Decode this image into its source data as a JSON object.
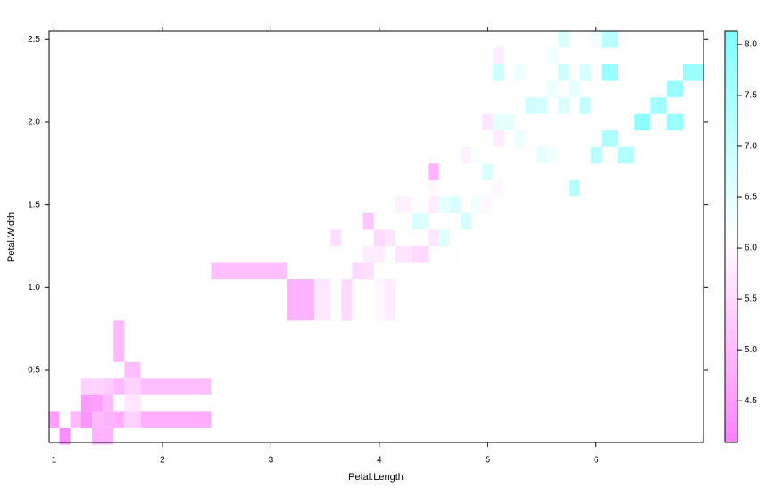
{
  "chart_data": {
    "type": "levelplot",
    "x_label": "Petal.Length",
    "y_label": "Petal.Width",
    "x": [
      1.0,
      1.1,
      1.2,
      1.3,
      1.3,
      1.3,
      1.4,
      1.4,
      1.4,
      1.4,
      1.5,
      1.5,
      1.5,
      1.5,
      1.6,
      1.6,
      1.6,
      1.7,
      1.7,
      1.7,
      1.7,
      1.9,
      1.9,
      3.0,
      3.3,
      3.5,
      3.6,
      3.7,
      3.8,
      3.9,
      3.9,
      3.9,
      4.0,
      4.0,
      4.0,
      4.1,
      4.1,
      4.2,
      4.2,
      4.4,
      4.4,
      4.5,
      4.5,
      4.5,
      4.5,
      4.6,
      4.6,
      4.6,
      4.7,
      4.7,
      4.7,
      4.8,
      4.8,
      4.9,
      4.9,
      5.0,
      5.0,
      5.0,
      5.1,
      5.1,
      5.1,
      5.1,
      5.1,
      5.2,
      5.3,
      5.3,
      5.4,
      5.5,
      5.5,
      5.6,
      5.6,
      5.6,
      5.6,
      5.7,
      5.7,
      5.7,
      5.8,
      5.8,
      5.9,
      5.9,
      6.0,
      6.0,
      6.1,
      6.1,
      6.1,
      6.3,
      6.4,
      6.6,
      6.7,
      6.7,
      6.9
    ],
    "y": [
      0.2,
      0.1,
      0.2,
      0.2,
      0.3,
      0.4,
      0.1,
      0.2,
      0.3,
      0.4,
      0.1,
      0.2,
      0.3,
      0.4,
      0.2,
      0.4,
      0.6,
      0.2,
      0.3,
      0.4,
      0.5,
      0.2,
      0.4,
      1.1,
      1.0,
      1.0,
      1.3,
      1.0,
      1.1,
      1.1,
      1.2,
      1.4,
      1.0,
      1.2,
      1.3,
      1.0,
      1.3,
      1.2,
      1.5,
      1.2,
      1.4,
      1.3,
      1.5,
      1.6,
      1.7,
      1.3,
      1.4,
      1.5,
      1.2,
      1.4,
      1.5,
      1.4,
      1.8,
      1.5,
      1.8,
      1.7,
      1.5,
      2.0,
      1.6,
      1.9,
      2.0,
      2.4,
      2.3,
      2.0,
      1.9,
      2.3,
      2.1,
      1.8,
      2.1,
      1.4,
      1.8,
      2.2,
      2.4,
      2.1,
      2.3,
      2.5,
      1.6,
      2.2,
      2.1,
      2.3,
      1.8,
      2.5,
      1.9,
      2.3,
      2.5,
      1.8,
      2.0,
      2.1,
      2.0,
      2.2,
      2.3
    ],
    "values": [
      4.6,
      4.3,
      5.0,
      4.4,
      4.5,
      5.4,
      4.9,
      5.0,
      4.6,
      5.4,
      4.9,
      4.9,
      5.0,
      5.3,
      4.8,
      5.0,
      5.0,
      5.4,
      5.7,
      5.4,
      5.1,
      4.8,
      5.1,
      5.1,
      4.9,
      5.7,
      5.6,
      5.5,
      5.5,
      5.6,
      5.8,
      5.2,
      6.0,
      5.8,
      5.5,
      5.8,
      5.7,
      5.7,
      5.9,
      5.5,
      6.7,
      5.7,
      5.8,
      6.0,
      4.9,
      6.6,
      6.1,
      6.5,
      6.1,
      6.1,
      6.7,
      6.8,
      5.9,
      6.3,
      6.2,
      6.7,
      6.0,
      5.7,
      6.0,
      5.8,
      6.5,
      5.8,
      6.9,
      6.5,
      6.4,
      6.4,
      6.9,
      6.5,
      6.8,
      6.1,
      6.3,
      6.4,
      6.3,
      6.7,
      6.9,
      6.7,
      7.2,
      6.5,
      7.1,
      6.8,
      7.2,
      6.3,
      7.4,
      7.7,
      7.2,
      7.3,
      7.9,
      7.6,
      7.7,
      7.7,
      7.7
    ],
    "xlim": [
      0.955,
      6.99
    ],
    "ylim": [
      0.063,
      2.55
    ],
    "zlim": [
      4.09,
      8.13
    ],
    "xticks": [
      {
        "value": 1,
        "label": "1"
      },
      2,
      3,
      4,
      5,
      6
    ],
    "yticks": [
      0.5,
      {
        "value": 1,
        "label": "1.0"
      },
      1.5,
      {
        "value": 2,
        "label": "2.0"
      },
      2.5
    ],
    "zticks": [
      4.5,
      {
        "value": 5,
        "label": "5.0"
      },
      5.5,
      {
        "value": 6,
        "label": "6.0"
      },
      6.5,
      {
        "value": 7,
        "label": "7.0"
      },
      7.5,
      {
        "value": 8,
        "label": "8.0"
      }
    ],
    "colors": [
      "#FF80FF",
      "#FFFFFF",
      "#80FFFF"
    ]
  }
}
